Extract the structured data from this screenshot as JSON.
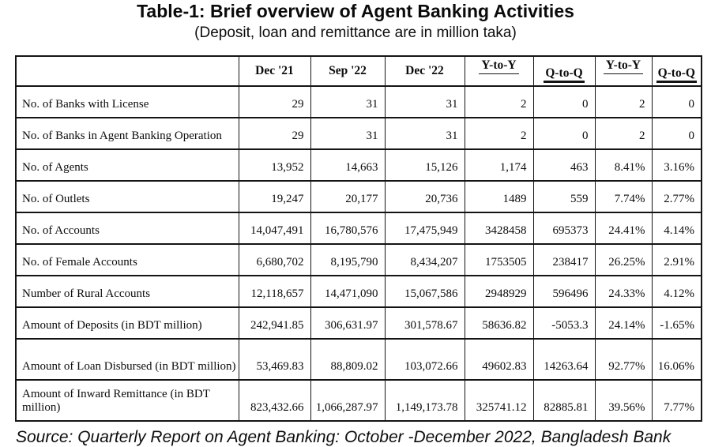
{
  "title": "Table-1: Brief overview of Agent Banking Activities",
  "subtitle": "(Deposit, loan and remittance are in million taka)",
  "table": {
    "column_headers": [
      "",
      "Dec '21",
      "Sep '22",
      "Dec '22",
      "Y-to-Y",
      "Q-to-Q",
      "Y-to-Y",
      "Q-to-Q"
    ],
    "rows": [
      {
        "label": "No. of Banks with License",
        "values": [
          "29",
          "31",
          "31",
          "2",
          "0",
          "2",
          "0"
        ]
      },
      {
        "label": "No. of Banks in Agent Banking Operation",
        "values": [
          "29",
          "31",
          "31",
          "2",
          "0",
          "2",
          "0"
        ]
      },
      {
        "label": "No. of Agents",
        "values": [
          "13,952",
          "14,663",
          "15,126",
          "1,174",
          "463",
          "8.41%",
          "3.16%"
        ]
      },
      {
        "label": "No. of Outlets",
        "values": [
          "19,247",
          "20,177",
          "20,736",
          "1489",
          "559",
          "7.74%",
          "2.77%"
        ]
      },
      {
        "label": "No. of Accounts",
        "values": [
          "14,047,491",
          "16,780,576",
          "17,475,949",
          "3428458",
          "695373",
          "24.41%",
          "4.14%"
        ]
      },
      {
        "label": "No. of Female Accounts",
        "values": [
          "6,680,702",
          "8,195,790",
          "8,434,207",
          "1753505",
          "238417",
          "26.25%",
          "2.91%"
        ]
      },
      {
        "label": "Number of Rural Accounts",
        "values": [
          "12,118,657",
          "14,471,090",
          "15,067,586",
          "2948929",
          "596496",
          "24.33%",
          "4.12%"
        ]
      },
      {
        "label": "Amount of Deposits (in BDT million)",
        "values": [
          "242,941.85",
          "306,631.97",
          "301,578.67",
          "58636.82",
          "-5053.3",
          "24.14%",
          "-1.65%"
        ]
      },
      {
        "label": "Amount of Loan Disbursed (in BDT million)",
        "values": [
          "53,469.83",
          "88,809.02",
          "103,072.66",
          "49602.83",
          "14263.64",
          "92.77%",
          "16.06%"
        ]
      },
      {
        "label": "Amount of Inward Remittance (in BDT million)",
        "values": [
          "823,432.66",
          "1,066,287.97",
          "1,149,173.78",
          "325741.12",
          "82885.81",
          "39.56%",
          "7.77%"
        ]
      }
    ]
  },
  "source": "Source: Quarterly Report on Agent Banking: October -December 2022, Bangladesh Bank"
}
